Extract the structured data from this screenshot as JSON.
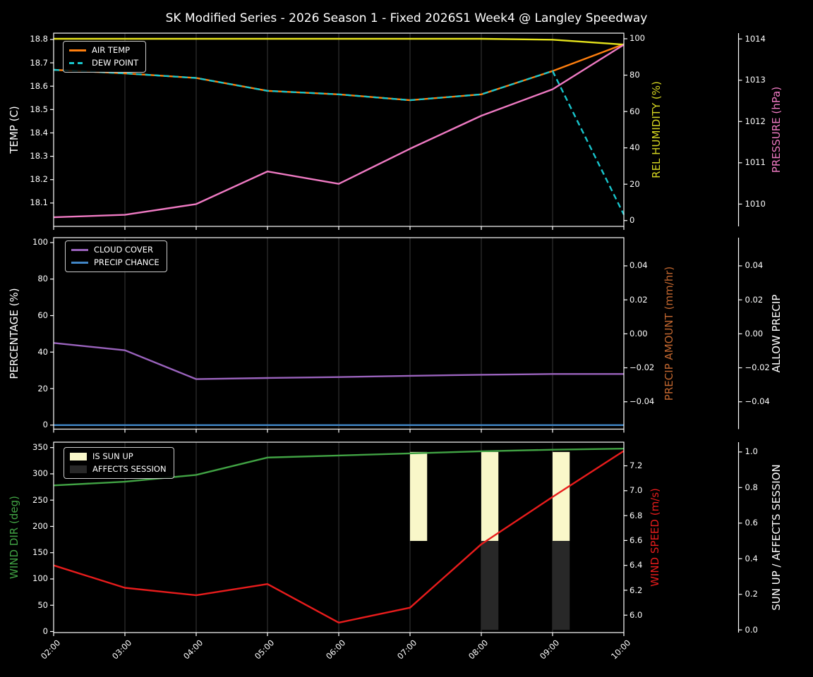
{
  "title": "SK Modified Series - 2026 Season 1 - Fixed 2026S1 Week4 @ Langley Speedway",
  "background": "#000000",
  "text_color": "#ffffff",
  "grid_color": "#3a3a3a",
  "x_axis": {
    "labels": [
      "02:00",
      "03:00",
      "04:00",
      "05:00",
      "06:00",
      "07:00",
      "08:00",
      "09:00",
      "10:00"
    ],
    "hours": [
      2,
      3,
      4,
      5,
      6,
      7,
      8,
      9,
      10
    ]
  },
  "chart_data": [
    {
      "type": "line",
      "categories": [
        "02:00",
        "03:00",
        "04:00",
        "05:00",
        "06:00",
        "07:00",
        "08:00",
        "09:00",
        "10:00"
      ],
      "axes": {
        "left": {
          "label": "TEMP (C)",
          "color": "#ffffff",
          "ylim": [
            18.0,
            18.827
          ],
          "ticks": [
            18.1,
            18.2,
            18.3,
            18.4,
            18.5,
            18.6,
            18.7,
            18.8
          ],
          "tick_labels": [
            "18.1",
            "18.2",
            "18.3",
            "18.4",
            "18.5",
            "18.6",
            "18.7",
            "18.8"
          ]
        },
        "right1": {
          "label": "REL HUMIDITY (%)",
          "color": "#d6d621",
          "ylim": [
            -3.2,
            103.1
          ],
          "ticks": [
            0,
            20,
            40,
            60,
            80,
            100
          ],
          "tick_labels": [
            "0",
            "20",
            "40",
            "60",
            "80",
            "100"
          ]
        },
        "right2": {
          "label": "PRESSURE (hPa)",
          "color": "#ef7ac3",
          "ylim": [
            1009.46,
            1014.14
          ],
          "ticks": [
            1010,
            1011,
            1012,
            1013,
            1014
          ],
          "tick_labels": [
            "1010",
            "1011",
            "1012",
            "1013",
            "1014"
          ]
        }
      },
      "series": [
        {
          "name": "AIR TEMP",
          "axis": "left",
          "color": "#ff7f0e",
          "style": "solid",
          "values": [
            18.67,
            18.655,
            18.635,
            18.58,
            18.565,
            18.54,
            18.565,
            18.665,
            18.78
          ]
        },
        {
          "name": "DEW POINT",
          "axis": "left",
          "color": "#18c5cc",
          "style": "dashed",
          "values": [
            18.67,
            18.655,
            18.635,
            18.58,
            18.565,
            18.54,
            18.565,
            18.665,
            18.05
          ]
        },
        {
          "name": "REL HUMIDITY",
          "axis": "right1",
          "color": "#e6e41c",
          "style": "solid",
          "values": [
            100,
            100,
            100,
            100,
            100,
            100,
            100,
            99.5,
            96.8
          ]
        },
        {
          "name": "PRESSURE",
          "axis": "right2",
          "color": "#ef7ac3",
          "style": "solid",
          "values": [
            1009.68,
            1009.74,
            1010.0,
            1010.79,
            1010.49,
            1011.34,
            1012.14,
            1012.78,
            1013.86
          ]
        }
      ],
      "legend": [
        {
          "label": "AIR TEMP",
          "color": "#ff7f0e",
          "swatch": "line"
        },
        {
          "label": "DEW POINT",
          "color": "#18c5cc",
          "swatch": "dash"
        }
      ]
    },
    {
      "type": "line",
      "categories": [
        "02:00",
        "03:00",
        "04:00",
        "05:00",
        "06:00",
        "07:00",
        "08:00",
        "09:00",
        "10:00"
      ],
      "axes": {
        "left": {
          "label": "PERCENTAGE (%)",
          "color": "#ffffff",
          "ylim": [
            -2.2,
            102.7
          ],
          "ticks": [
            0,
            20,
            40,
            60,
            80,
            100
          ],
          "tick_labels": [
            "0",
            "20",
            "40",
            "60",
            "80",
            "100"
          ]
        },
        "right1": {
          "label": "PRECIP AMOUNT (mm/hr)",
          "color": "#c0662f",
          "ylim": [
            -0.0561,
            0.0566
          ],
          "ticks": [
            -0.04,
            -0.02,
            0,
            0.02,
            0.04
          ],
          "tick_labels": [
            "−0.04",
            "−0.02",
            "0.00",
            "0.02",
            "0.04"
          ]
        },
        "right2": {
          "label": "ALLOW PRECIP",
          "color": "#ffffff",
          "ylim": [
            -0.0561,
            0.0566
          ],
          "ticks": [
            -0.04,
            -0.02,
            0,
            0.02,
            0.04
          ],
          "tick_labels": [
            "−0.04",
            "−0.02",
            "0.00",
            "0.02",
            "0.04"
          ]
        }
      },
      "series": [
        {
          "name": "CLOUD COVER",
          "axis": "left",
          "color": "#9a63bd",
          "style": "solid",
          "values": [
            45,
            41,
            25.2,
            25.8,
            26.3,
            27,
            27.6,
            28,
            28
          ]
        },
        {
          "name": "PRECIP CHANCE",
          "axis": "left",
          "color": "#4186c6",
          "style": "solid",
          "values": [
            0,
            0,
            0,
            0,
            0,
            0,
            0,
            0,
            0
          ]
        }
      ],
      "legend": [
        {
          "label": "CLOUD COVER",
          "color": "#9a63bd",
          "swatch": "line"
        },
        {
          "label": "PRECIP CHANCE",
          "color": "#4186c6",
          "swatch": "line"
        }
      ]
    },
    {
      "type": "line",
      "categories": [
        "02:00",
        "03:00",
        "04:00",
        "05:00",
        "06:00",
        "07:00",
        "08:00",
        "09:00",
        "10:00"
      ],
      "axes": {
        "left": {
          "label": "WIND DIR (deg)",
          "color": "#41a344",
          "ylim": [
            -2,
            360.3
          ],
          "ticks": [
            0,
            50,
            100,
            150,
            200,
            250,
            300,
            350
          ],
          "tick_labels": [
            "0",
            "50",
            "100",
            "150",
            "200",
            "250",
            "300",
            "350"
          ]
        },
        "right1": {
          "label": "WIND SPEED (m/s)",
          "color": "#e81c1c",
          "ylim": [
            5.86,
            7.39
          ],
          "ticks": [
            6.0,
            6.2,
            6.4,
            6.6,
            6.8,
            7.0,
            7.2
          ],
          "tick_labels": [
            "6.0",
            "6.2",
            "6.4",
            "6.6",
            "6.8",
            "7.0",
            "7.2"
          ]
        },
        "right2": {
          "label": "SUN UP / AFFECTS SESSION",
          "color": "#ffffff",
          "ylim": [
            -0.015,
            1.055
          ],
          "ticks": [
            0,
            0.2,
            0.4,
            0.6,
            0.8,
            1.0
          ],
          "tick_labels": [
            "0.0",
            "0.2",
            "0.4",
            "0.6",
            "0.8",
            "1.0"
          ]
        }
      },
      "series": [
        {
          "name": "WIND DIR",
          "axis": "left",
          "color": "#41a344",
          "style": "solid",
          "values": [
            278,
            285,
            298,
            331,
            335,
            339,
            343,
            346,
            348
          ]
        },
        {
          "name": "WIND SPEED",
          "axis": "right1",
          "color": "#e81c1c",
          "style": "solid",
          "values": [
            6.4,
            6.22,
            6.16,
            6.25,
            5.94,
            6.06,
            6.57,
            6.95,
            7.32
          ]
        }
      ],
      "bars": [
        {
          "name": "IS SUN UP",
          "axis": "right2",
          "color": "#f9f7c9",
          "x": [
            7,
            8,
            9
          ],
          "from": 0.5,
          "to": 1.0
        },
        {
          "name": "AFFECTS SESSION",
          "axis": "right2",
          "color": "#282828",
          "x": [
            8,
            9
          ],
          "from": 0.0,
          "to": 0.5
        }
      ],
      "bar_width_hours": 0.24,
      "legend": [
        {
          "label": "IS SUN UP",
          "color": "#f9f7c9",
          "swatch": "patch"
        },
        {
          "label": "AFFECTS SESSION",
          "color": "#282828",
          "swatch": "patch"
        }
      ]
    }
  ]
}
